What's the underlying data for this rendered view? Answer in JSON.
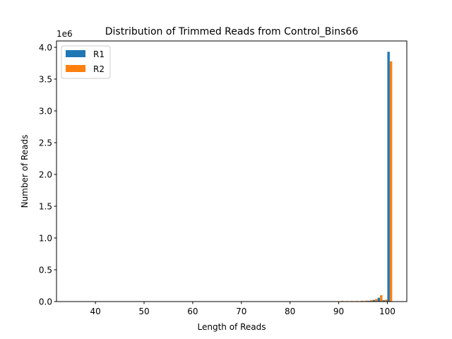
{
  "chart_data": {
    "type": "bar",
    "title": "Distribution of Trimmed Reads from Control_Bins66",
    "xlabel": "Length of Reads",
    "ylabel": "Number of Reads",
    "y_offset_label": "1e6",
    "xlim": [
      32,
      104
    ],
    "ylim": [
      0,
      4.1
    ],
    "y_unit_multiplier": 1000000,
    "xticks": [
      40,
      50,
      60,
      70,
      80,
      90,
      100
    ],
    "yticks": [
      0.0,
      0.5,
      1.0,
      1.5,
      2.0,
      2.5,
      3.0,
      3.5,
      4.0
    ],
    "ytick_labels": [
      "0.0",
      "0.5",
      "1.0",
      "1.5",
      "2.0",
      "2.5",
      "3.0",
      "3.5",
      "4.0"
    ],
    "grid": false,
    "legend_position": "top-left",
    "series": [
      {
        "name": "R1",
        "color": "#1f77b4",
        "x": [
          90,
          91,
          92,
          93,
          94,
          95,
          96,
          97,
          98,
          99,
          100
        ],
        "values": [
          0.005,
          0.004,
          0.004,
          0.005,
          0.006,
          0.008,
          0.012,
          0.025,
          0.06,
          0.02,
          3.93
        ]
      },
      {
        "name": "R2",
        "color": "#ff7f0e",
        "x": [
          90,
          91,
          92,
          93,
          94,
          95,
          96,
          97,
          98,
          99,
          100
        ],
        "values": [
          0.01,
          0.008,
          0.009,
          0.01,
          0.012,
          0.015,
          0.022,
          0.04,
          0.1,
          0.03,
          3.78
        ]
      }
    ]
  }
}
